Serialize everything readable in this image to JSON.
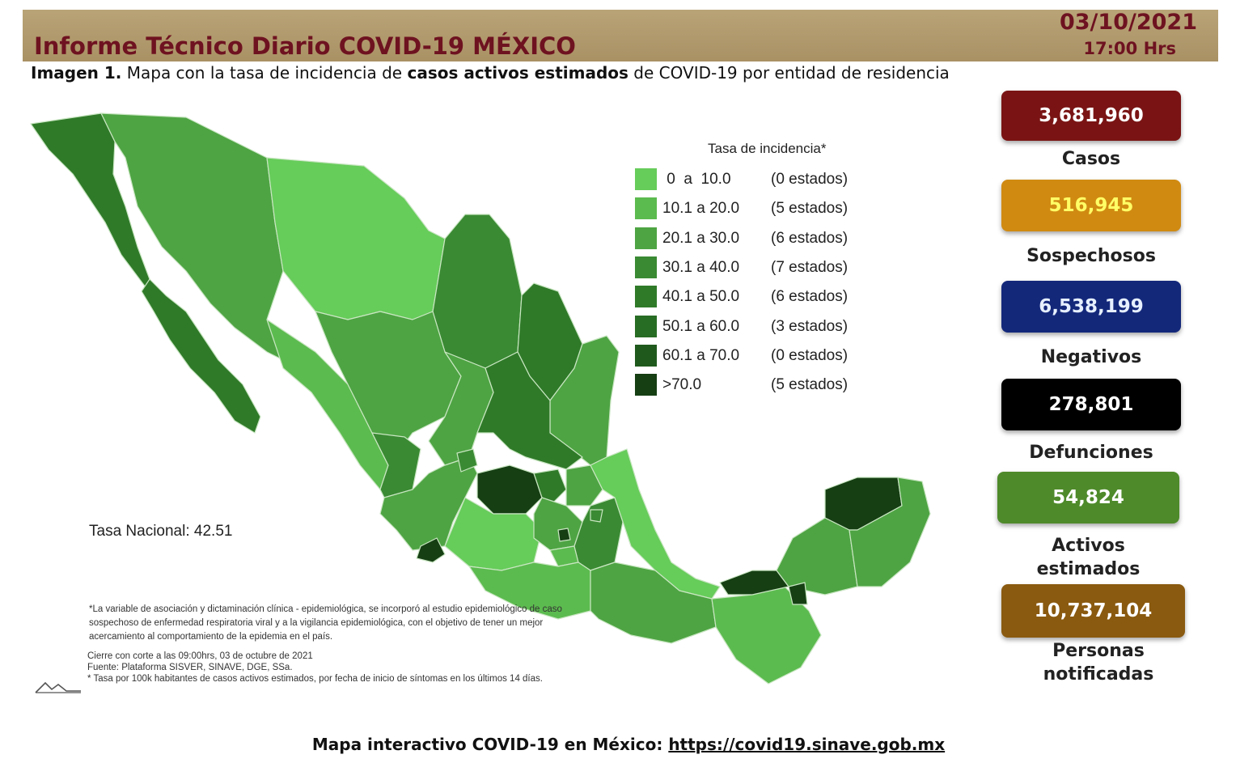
{
  "header": {
    "title": "Informe Técnico Diario COVID-19 MÉXICO",
    "date": "03/10/2021",
    "time": "17:00 Hrs",
    "colors": {
      "bar": "#b09a6c",
      "text": "#6e1220"
    }
  },
  "subtitle": {
    "bold1": "Imagen 1.",
    "text1": " Mapa con la tasa de incidencia de ",
    "bold2": "casos activos estimados",
    "text2": " de COVID-19 por entidad de residencia"
  },
  "legend": {
    "title": "Tasa de incidencia*",
    "items": [
      {
        "range": " 0  a  10.0",
        "count": "(0 estados)",
        "color": "#66cc5a"
      },
      {
        "range": "10.1 a 20.0",
        "count": "(5 estados)",
        "color": "#5cbb4f"
      },
      {
        "range": "20.1 a 30.0",
        "count": "(6 estados)",
        "color": "#4ea443"
      },
      {
        "range": "30.1 a 40.0",
        "count": "(7 estados)",
        "color": "#3a8a33"
      },
      {
        "range": "40.1 a 50.0",
        "count": "(6 estados)",
        "color": "#2f7a29"
      },
      {
        "range": "50.1 a 60.0",
        "count": "(3 estados)",
        "color": "#286d24"
      },
      {
        "range": "60.1 a 70.0",
        "count": "(0 estados)",
        "color": "#1f5a1c"
      },
      {
        "range": ">70.0",
        "count": "(5 estados)",
        "color": "#163f14"
      }
    ]
  },
  "tasa_nacional": "Tasa Nacional: 42.51",
  "notes": {
    "asterisk": "*La variable de asociación y dictaminación clínica - epidemiológica, se incorporó al estudio epidemiológico de caso sospechoso de enfermedad respiratoria viral y a la vigilancia epidemiológica, con el objetivo de tener un mejor acercamiento al comportamiento de la epidemia en el país.",
    "cierre": "Cierre con corte a las 09:00hrs, 03 de octubre de 2021",
    "fuente": "Fuente: Plataforma SISVER, SINAVE, DGE, SSa.",
    "tasa": "* Tasa por 100k habitantes de casos activos estimados, por fecha de inicio de síntomas en los últimos 14 días."
  },
  "stats": [
    {
      "value": "3,681,960",
      "label": "Casos",
      "bg": "#7a1414",
      "fg": "#ffffff"
    },
    {
      "value": "516,945",
      "label": "Sospechosos",
      "bg": "#d08a12",
      "fg": "#ffff66"
    },
    {
      "value": "6,538,199",
      "label": "Negativos",
      "bg": "#14287a",
      "fg": "#e6f0ff"
    },
    {
      "value": "278,801",
      "label": "Defunciones",
      "bg": "#000000",
      "fg": "#ffffff"
    },
    {
      "value": "54,824",
      "label": "Activos estimados",
      "bg": "#4e8a2a",
      "fg": "#ffffff"
    },
    {
      "value": "10,737,104",
      "label": "Personas notificadas",
      "bg": "#8a5a10",
      "fg": "#ffffff"
    }
  ],
  "footer": {
    "text": "Mapa interactivo COVID-19 en México: ",
    "link": "https://covid19.sinave.gob.mx"
  }
}
